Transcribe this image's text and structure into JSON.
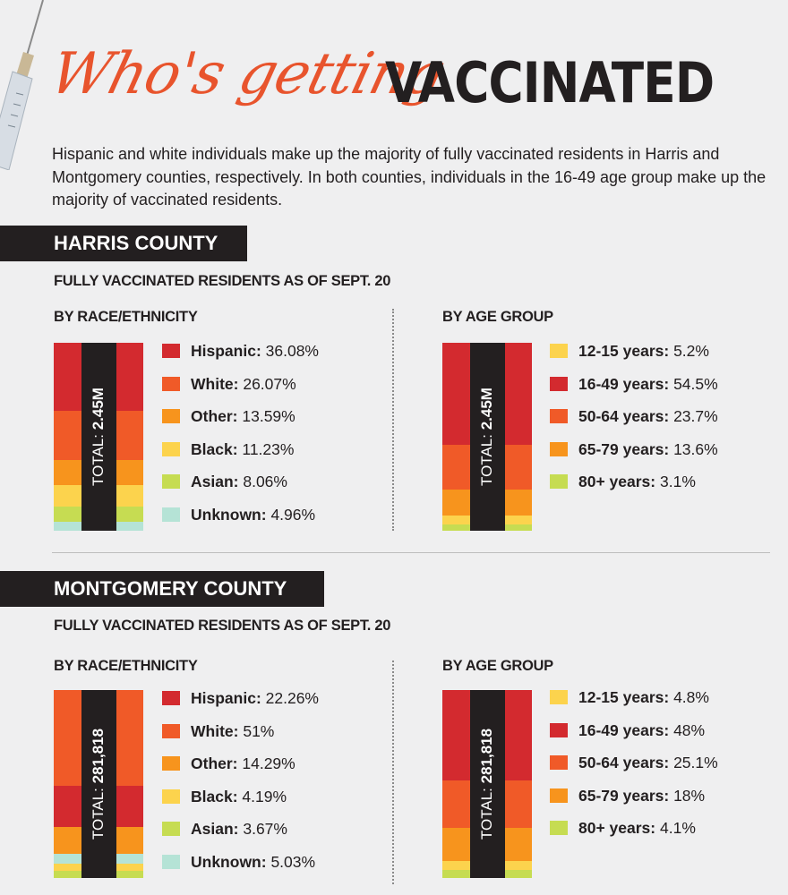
{
  "header": {
    "title_script": "Who's getting",
    "title_block": "VACCINATED",
    "intro": "Hispanic and white individuals make up the majority of fully vaccinated residents in Harris and Montgomery counties, respectively. In both counties, individuals in the 16-49 age group make up the majority of vaccinated residents."
  },
  "colors": {
    "red": "#d32a2f",
    "orange_red": "#f05a28",
    "orange": "#f7941d",
    "yellow": "#fcd34d",
    "lime": "#c6dc52",
    "teal": "#b5e3d6",
    "dark": "#231f20"
  },
  "sections": [
    {
      "county": "HARRIS COUNTY",
      "subhead": "FULLY VACCINATED RESIDENTS AS OF SEPT. 20",
      "race_head": "BY RACE/ETHNICITY",
      "age_head": "BY AGE GROUP",
      "race_total_label": "TOTAL: ",
      "race_total_value": "2.45M",
      "age_total_label": "TOTAL: ",
      "age_total_value": "2.45M",
      "race_items": [
        {
          "name": "Hispanic:",
          "value_label": "36.08%"
        },
        {
          "name": "White:",
          "value_label": "26.07%"
        },
        {
          "name": "Other:",
          "value_label": "13.59%"
        },
        {
          "name": "Black:",
          "value_label": "11.23%"
        },
        {
          "name": "Asian:",
          "value_label": "8.06%"
        },
        {
          "name": "Unknown:",
          "value_label": "4.96%"
        }
      ],
      "age_items": [
        {
          "name": "12-15 years:",
          "value_label": "5.2%"
        },
        {
          "name": "16-49 years:",
          "value_label": "54.5%"
        },
        {
          "name": "50-64 years:",
          "value_label": "23.7%"
        },
        {
          "name": "65-79 years:",
          "value_label": "13.6%"
        },
        {
          "name": "80+ years:",
          "value_label": "3.1%"
        }
      ]
    },
    {
      "county": "MONTGOMERY COUNTY",
      "subhead": "FULLY VACCINATED RESIDENTS AS OF SEPT. 20",
      "race_head": "BY RACE/ETHNICITY",
      "age_head": "BY AGE GROUP",
      "race_total_label": "TOTAL: ",
      "race_total_value": "281,818",
      "age_total_label": "TOTAL: ",
      "age_total_value": "281,818",
      "race_items": [
        {
          "name": "Hispanic:",
          "value_label": "22.26%"
        },
        {
          "name": "White:",
          "value_label": "51%"
        },
        {
          "name": "Other:",
          "value_label": "14.29%"
        },
        {
          "name": "Black:",
          "value_label": "4.19%"
        },
        {
          "name": "Asian:",
          "value_label": "3.67%"
        },
        {
          "name": "Unknown:",
          "value_label": "5.03%"
        }
      ],
      "age_items": [
        {
          "name": "12-15 years:",
          "value_label": "4.8%"
        },
        {
          "name": "16-49 years:",
          "value_label": "48%"
        },
        {
          "name": "50-64 years:",
          "value_label": "25.1%"
        },
        {
          "name": "65-79 years:",
          "value_label": "18%"
        },
        {
          "name": "80+ years:",
          "value_label": "4.1%"
        }
      ]
    }
  ],
  "chart_data": [
    {
      "type": "bar",
      "title": "BY RACE/ETHNICITY",
      "stacked": true,
      "categories": [
        "Hispanic",
        "White",
        "Other",
        "Black",
        "Asian",
        "Unknown"
      ],
      "values": [
        36.08,
        26.07,
        13.59,
        11.23,
        8.06,
        4.96
      ],
      "colors": [
        "#d32a2f",
        "#f05a28",
        "#f7941d",
        "#fcd34d",
        "#c6dc52",
        "#b5e3d6"
      ],
      "stack_order_top_to_bottom": [
        "Hispanic",
        "White",
        "Other",
        "Black",
        "Asian",
        "Unknown"
      ]
    },
    {
      "type": "bar",
      "title": "BY AGE GROUP",
      "stacked": true,
      "categories": [
        "12-15 years",
        "16-49 years",
        "50-64 years",
        "65-79 years",
        "80+ years"
      ],
      "values": [
        5.2,
        54.5,
        23.7,
        13.6,
        3.1
      ],
      "colors": [
        "#fcd34d",
        "#d32a2f",
        "#f05a28",
        "#f7941d",
        "#c6dc52"
      ],
      "stack_order_top_to_bottom": [
        "16-49 years",
        "50-64 years",
        "65-79 years",
        "12-15 years",
        "80+ years"
      ]
    },
    {
      "type": "bar",
      "title": "BY RACE/ETHNICITY",
      "stacked": true,
      "categories": [
        "Hispanic",
        "White",
        "Other",
        "Black",
        "Asian",
        "Unknown"
      ],
      "values": [
        22.26,
        51,
        14.29,
        4.19,
        3.67,
        5.03
      ],
      "colors": [
        "#d32a2f",
        "#f05a28",
        "#f7941d",
        "#fcd34d",
        "#c6dc52",
        "#b5e3d6"
      ],
      "stack_order_top_to_bottom": [
        "White",
        "Hispanic",
        "Other",
        "Unknown",
        "Black",
        "Asian"
      ]
    },
    {
      "type": "bar",
      "title": "BY AGE GROUP",
      "stacked": true,
      "categories": [
        "12-15 years",
        "16-49 years",
        "50-64 years",
        "65-79 years",
        "80+ years"
      ],
      "values": [
        4.8,
        48,
        25.1,
        18,
        4.1
      ],
      "colors": [
        "#fcd34d",
        "#d32a2f",
        "#f05a28",
        "#f7941d",
        "#c6dc52"
      ],
      "stack_order_top_to_bottom": [
        "16-49 years",
        "50-64 years",
        "65-79 years",
        "12-15 years",
        "80+ years"
      ]
    }
  ]
}
